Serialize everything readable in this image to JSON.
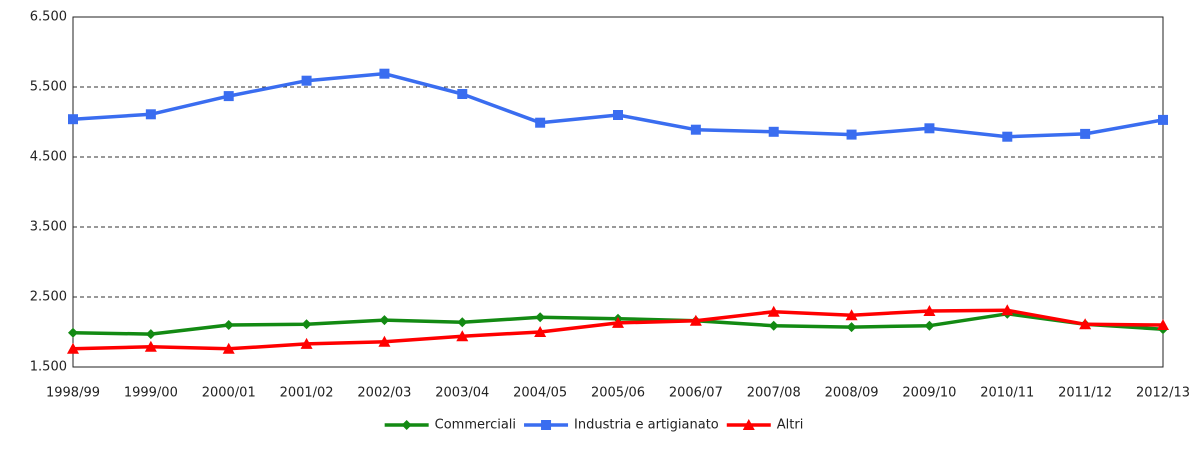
{
  "chart_data": {
    "type": "line",
    "categories": [
      "1998/99",
      "1999/00",
      "2000/01",
      "2001/02",
      "2002/03",
      "2003/04",
      "2004/05",
      "2005/06",
      "2006/07",
      "2007/08",
      "2008/09",
      "2009/10",
      "2010/11",
      "2011/12",
      "2012/13"
    ],
    "series": [
      {
        "name": "Commerciali",
        "color": "#138a13",
        "marker": "diamond",
        "values": [
          1990,
          1970,
          2100,
          2110,
          2170,
          2140,
          2210,
          2190,
          2160,
          2090,
          2070,
          2090,
          2260,
          2110,
          2040
        ]
      },
      {
        "name": "Industria e artigianato",
        "color": "#3a6df0",
        "marker": "square",
        "values": [
          5040,
          5110,
          5370,
          5590,
          5690,
          5400,
          4990,
          5100,
          4890,
          4860,
          4820,
          4910,
          4790,
          4830,
          5030
        ]
      },
      {
        "name": "Altri",
        "color": "#ff0000",
        "marker": "triangle",
        "values": [
          1760,
          1790,
          1760,
          1830,
          1860,
          1940,
          2000,
          2130,
          2160,
          2290,
          2240,
          2300,
          2310,
          2110,
          2100
        ]
      }
    ],
    "ylim": [
      1500,
      6500
    ],
    "yticks": [
      {
        "value": 1500,
        "label": "1.500"
      },
      {
        "value": 2500,
        "label": "2.500"
      },
      {
        "value": 3500,
        "label": "3.500"
      },
      {
        "value": 4500,
        "label": "4.500"
      },
      {
        "value": 5500,
        "label": "5.500"
      },
      {
        "value": 6500,
        "label": "6.500"
      }
    ],
    "grid": true,
    "legend": "bottom"
  }
}
